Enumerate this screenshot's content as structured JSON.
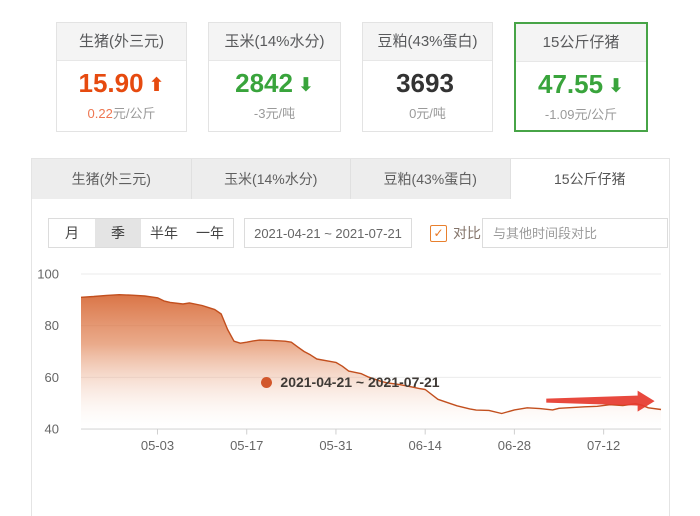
{
  "icons": {
    "up_arrow": "⬆",
    "down_arrow": "⬇",
    "check": "✓"
  },
  "summary_cards": [
    {
      "title": "生猪(外三元)",
      "value": "15.90",
      "trend": "up",
      "value_color": "#e64a0f",
      "change": "0.22",
      "change_color": "#ee7752",
      "unit": "元/公斤",
      "selected": false
    },
    {
      "title": "玉米(14%水分)",
      "value": "2842",
      "trend": "down",
      "value_color": "#39a43c",
      "change": "-3",
      "change_color": "#9a9a9a",
      "unit": "元/吨",
      "selected": false
    },
    {
      "title": "豆粕(43%蛋白)",
      "value": "3693",
      "trend": "flat",
      "value_color": "#333333",
      "change": "0",
      "change_color": "#9a9a9a",
      "unit": "元/吨",
      "selected": false
    },
    {
      "title": "15公斤仔猪",
      "value": "47.55",
      "trend": "down",
      "value_color": "#39a43c",
      "change": "-1.09",
      "change_color": "#9a9a9a",
      "unit": "元/公斤",
      "selected": true
    }
  ],
  "tabs": [
    {
      "label": "生猪(外三元)",
      "active": false
    },
    {
      "label": "玉米(14%水分)",
      "active": false
    },
    {
      "label": "豆粕(43%蛋白)",
      "active": false
    },
    {
      "label": "15公斤仔猪",
      "active": true
    }
  ],
  "controls": {
    "periods": [
      {
        "label": "月",
        "selected": false
      },
      {
        "label": "季",
        "selected": true
      },
      {
        "label": "半年",
        "selected": false
      },
      {
        "label": "一年",
        "selected": false
      }
    ],
    "date_range": "2021-04-21 ~ 2021-07-21",
    "compare_checked": true,
    "compare_label": "对比",
    "compare_placeholder": "与其他时间段对比"
  },
  "chart_data": {
    "type": "area",
    "x_range": [
      "2021-04-21",
      "2021-07-21"
    ],
    "x_tick_labels": [
      "05-03",
      "05-17",
      "05-31",
      "06-14",
      "06-28",
      "07-12"
    ],
    "y_ticks": [
      40,
      60,
      80,
      100
    ],
    "ylim": [
      40,
      100
    ],
    "grid": true,
    "series": [
      {
        "name": "2021-04-21 ~ 2021-07-21",
        "unit": "元/公斤",
        "line_color": "#c24f1e",
        "fill_top_color": "#d0541d",
        "fill_mid_color": "#df7e4e",
        "fill_bottom_color": "#ffffff",
        "x": [
          "04-21",
          "04-23",
          "04-25",
          "04-27",
          "04-29",
          "05-01",
          "05-03",
          "05-04",
          "05-05",
          "05-07",
          "05-08",
          "05-10",
          "05-11",
          "05-12",
          "05-13",
          "05-14",
          "05-15",
          "05-16",
          "05-17",
          "05-18",
          "05-19",
          "05-21",
          "05-23",
          "05-24",
          "05-25",
          "05-26",
          "05-27",
          "05-28",
          "05-30",
          "05-31",
          "06-01",
          "06-02",
          "06-04",
          "06-05",
          "06-07",
          "06-08",
          "06-10",
          "06-12",
          "06-13",
          "06-14",
          "06-16",
          "06-18",
          "06-19",
          "06-21",
          "06-22",
          "06-24",
          "06-26",
          "06-28",
          "06-30",
          "07-02",
          "07-04",
          "07-05",
          "07-07",
          "07-09",
          "07-11",
          "07-13",
          "07-15",
          "07-17",
          "07-18",
          "07-19",
          "07-21"
        ],
        "y": [
          91.0,
          91.3,
          91.7,
          92.0,
          91.8,
          91.5,
          90.8,
          89.6,
          89.0,
          88.4,
          88.8,
          87.8,
          87.0,
          86.2,
          84.5,
          78.5,
          74.0,
          73.2,
          73.6,
          74.1,
          74.4,
          74.3,
          74.0,
          73.6,
          71.8,
          70.0,
          68.7,
          67.1,
          66.2,
          65.8,
          64.3,
          62.4,
          61.4,
          60.2,
          58.5,
          57.9,
          57.2,
          56.2,
          55.7,
          55.3,
          51.5,
          49.8,
          49.0,
          47.8,
          47.3,
          47.2,
          46.0,
          47.4,
          48.2,
          47.9,
          47.4,
          48.0,
          48.3,
          48.6,
          48.8,
          49.4,
          49.1,
          49.8,
          49.2,
          48.2,
          47.55
        ]
      }
    ],
    "annotation": {
      "type": "arrow",
      "color": "#e63a2e",
      "from": "07-03",
      "to": "07-20",
      "value": 51
    },
    "legend": {
      "marker_color": "#d2572c",
      "label": "2021-04-21 ~ 2021-07-21",
      "position": "bottom"
    }
  }
}
